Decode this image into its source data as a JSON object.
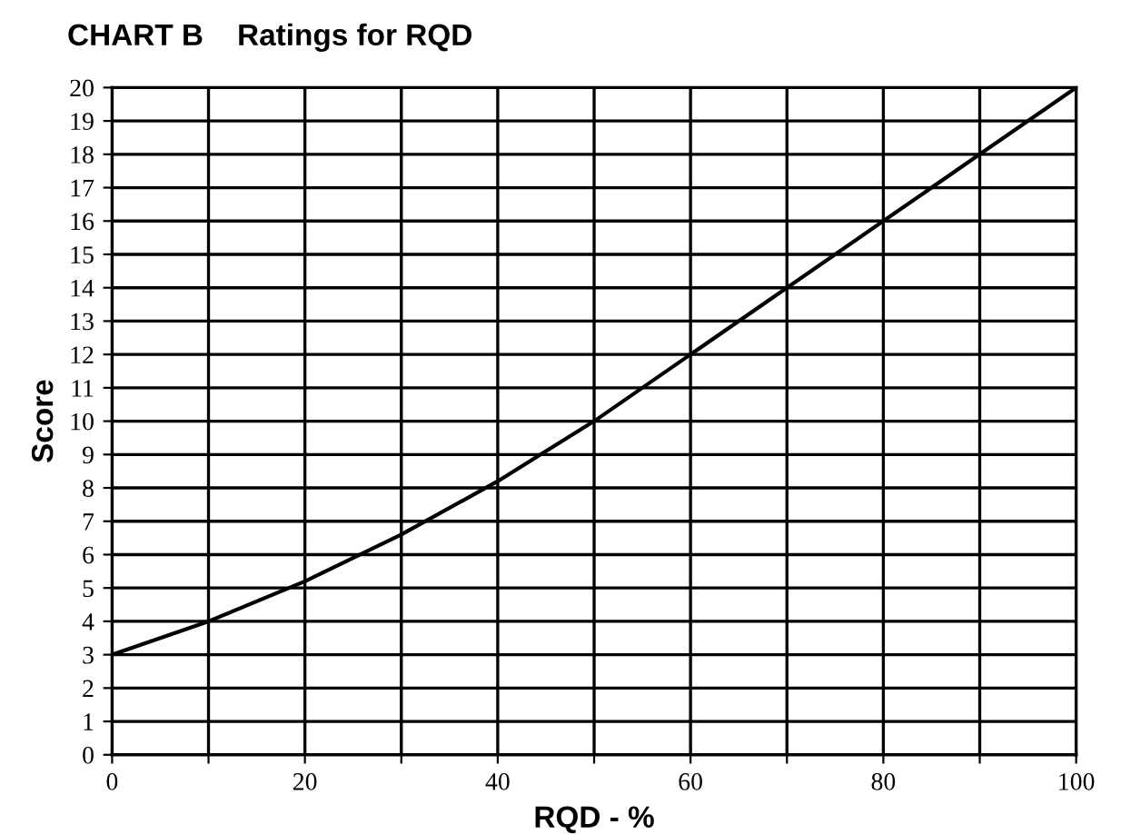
{
  "chart_data": {
    "type": "line",
    "title": "CHART B    Ratings for RQD",
    "xlabel": "RQD - %",
    "ylabel": "Score",
    "x": [
      0,
      10,
      20,
      30,
      40,
      50,
      60,
      70,
      80,
      90,
      100
    ],
    "series": [
      {
        "color": "#000000",
        "values": [
          3,
          4,
          5.2,
          6.6,
          8.2,
          10,
          12,
          14,
          16,
          18,
          20
        ]
      }
    ],
    "xlim": [
      0,
      100
    ],
    "ylim": [
      0,
      20
    ],
    "xticks": [
      0,
      {
        "value": 10,
        "label": null
      },
      20,
      {
        "value": 30,
        "label": null
      },
      40,
      {
        "value": 50,
        "label": null
      },
      60,
      {
        "value": 70,
        "label": null
      },
      80,
      {
        "value": 90,
        "label": null
      },
      100
    ],
    "yticks": [
      0,
      1,
      2,
      3,
      4,
      5,
      6,
      7,
      8,
      9,
      10,
      11,
      12,
      13,
      14,
      15,
      16,
      17,
      18,
      19,
      20
    ],
    "grid": true,
    "marker": "none",
    "line_style": "solid"
  }
}
